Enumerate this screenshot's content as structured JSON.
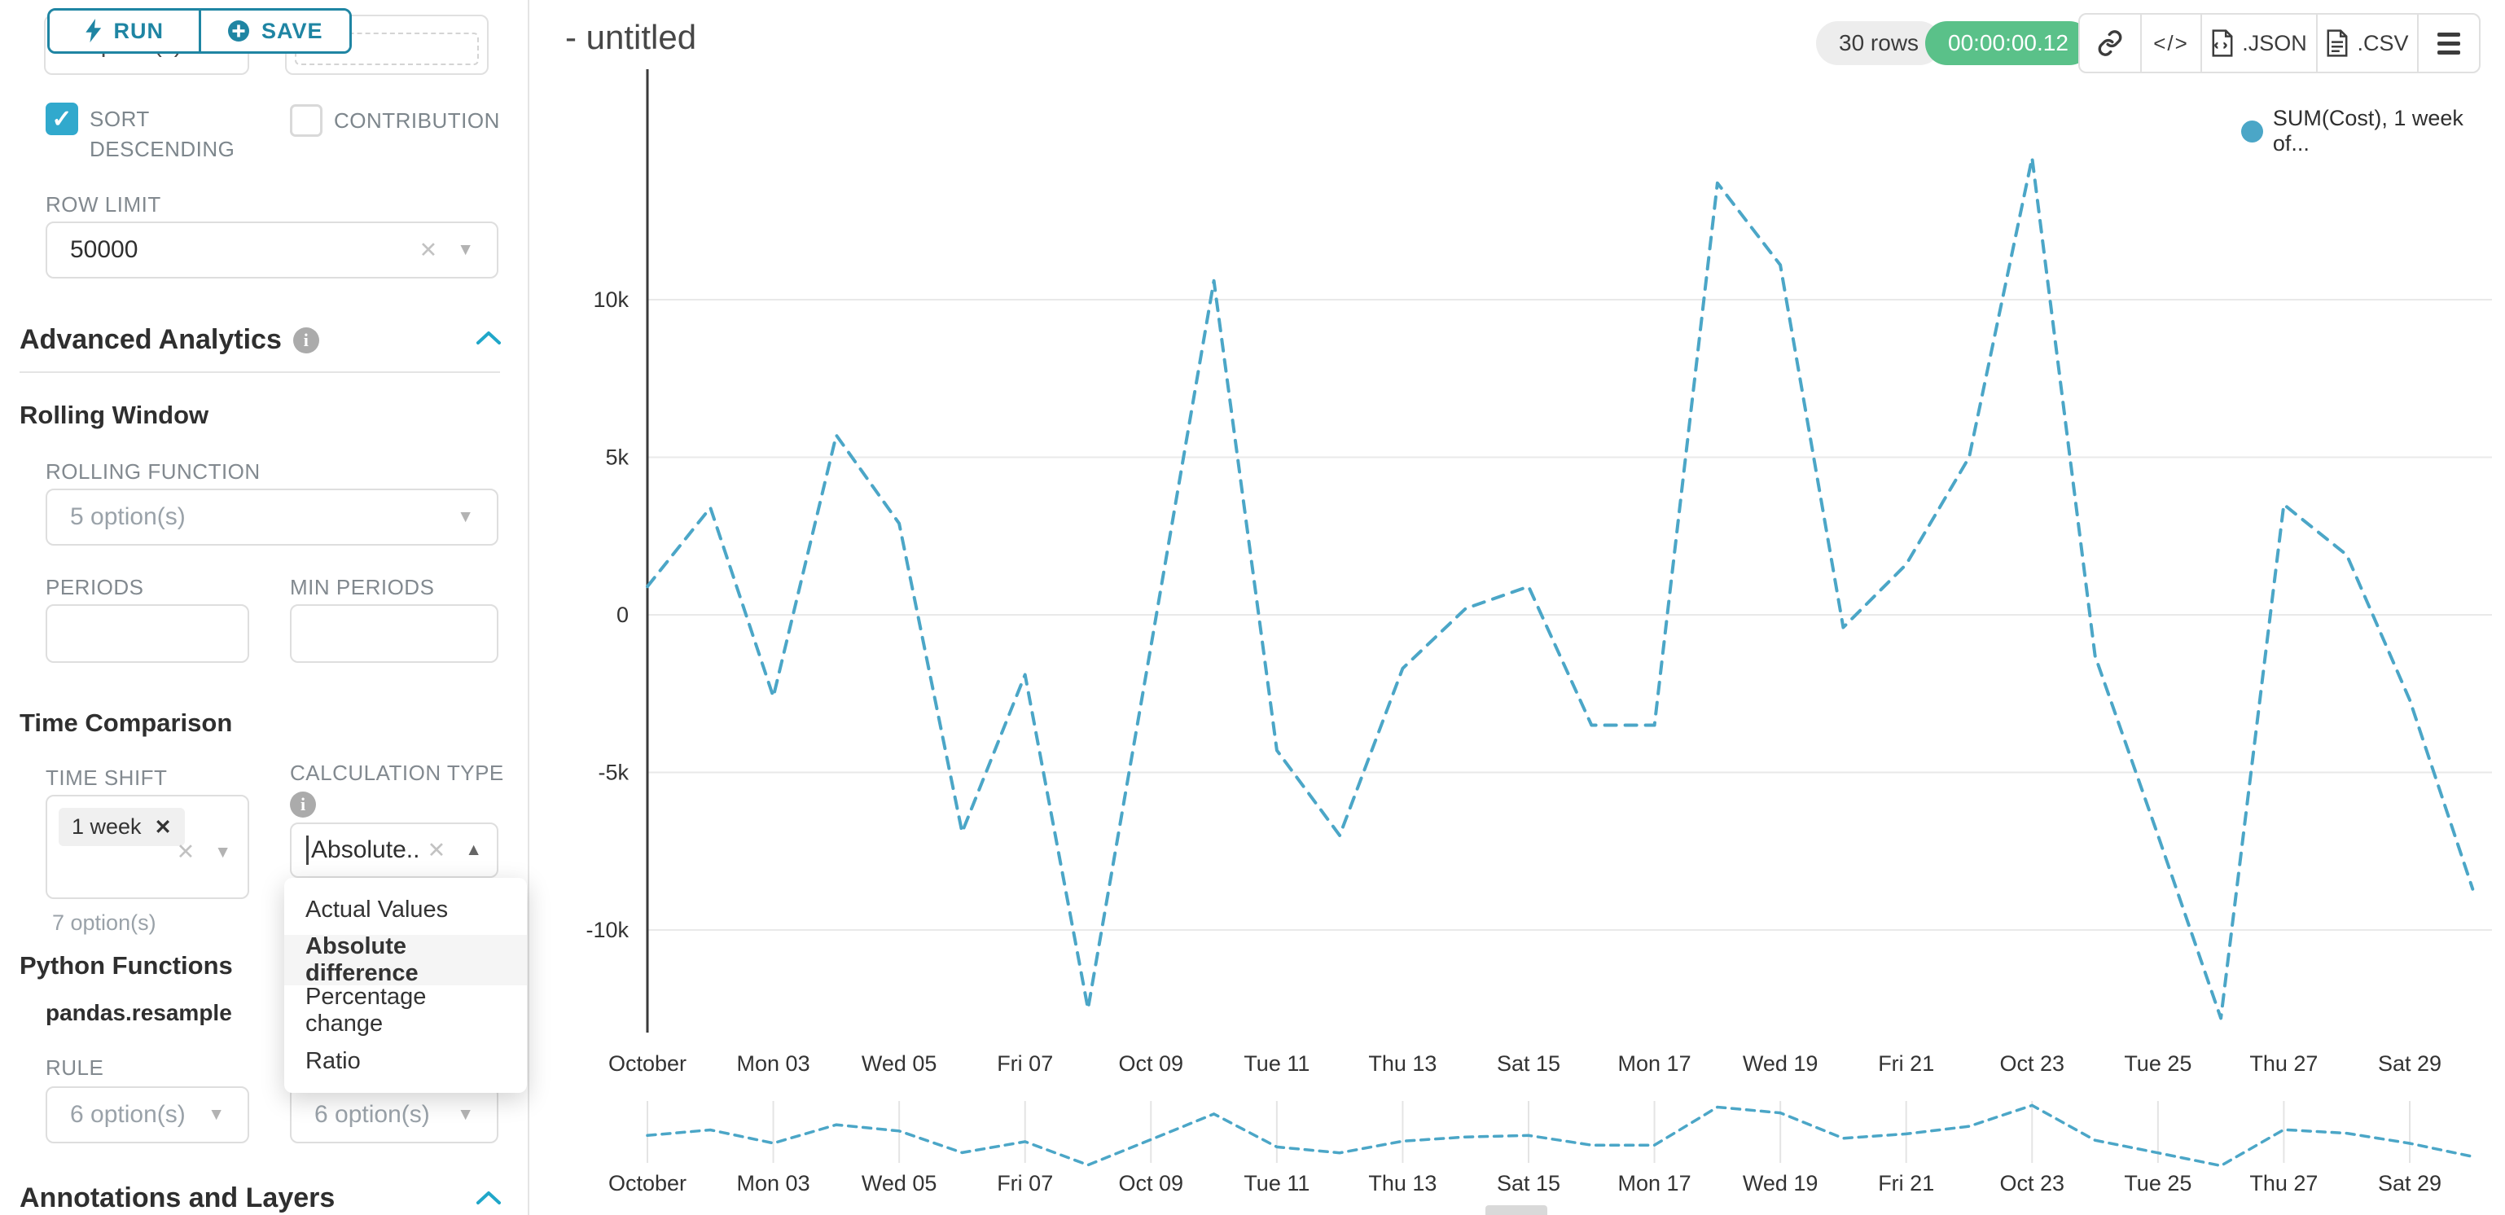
{
  "toolbar": {
    "run_label": "RUN",
    "save_label": "SAVE"
  },
  "header": {
    "title": "- untitled",
    "rows_badge": "30 rows",
    "timer": "00:00:00.12",
    "code_label": "</>",
    "json_label": ".JSON",
    "csv_label": ".CSV"
  },
  "sidebar": {
    "partial_select_value": "7 option(s)",
    "sort_descending_label": "SORT DESCENDING",
    "contribution_label": "CONTRIBUTION",
    "row_limit_label": "ROW LIMIT",
    "row_limit_value": "50000",
    "advanced_analytics_title": "Advanced Analytics",
    "rolling_window": {
      "title": "Rolling Window",
      "rolling_function_label": "ROLLING FUNCTION",
      "rolling_function_value": "5 option(s)",
      "periods_label": "PERIODS",
      "min_periods_label": "MIN PERIODS"
    },
    "time_comparison": {
      "title": "Time Comparison",
      "time_shift_label": "TIME SHIFT",
      "time_shift_tag": "1 week",
      "time_shift_helper": "7 option(s)",
      "calculation_type_label": "CALCULATION TYPE",
      "calculation_type_value": "Absolute...",
      "dropdown_options": [
        "Actual Values",
        "Absolute difference",
        "Percentage change",
        "Ratio"
      ],
      "dropdown_selected": "Absolute difference"
    },
    "python_functions": {
      "title": "Python Functions",
      "subtitle": "pandas.resample",
      "rule_label": "RULE",
      "rule_value_left": "6 option(s)",
      "rule_value_right": "6 option(s)"
    },
    "annotations_title": "Annotations and Layers"
  },
  "chart_data": {
    "type": "line",
    "line_style": "dashed",
    "line_color": "#4ba6c7",
    "legend": [
      {
        "name": "SUM(Cost), 1 week of...",
        "color": "#4ba6c7"
      }
    ],
    "x_dates": [
      "Oct 01",
      "Oct 02",
      "Oct 03",
      "Oct 04",
      "Oct 05",
      "Oct 06",
      "Oct 07",
      "Oct 08",
      "Oct 09",
      "Oct 10",
      "Oct 11",
      "Oct 12",
      "Oct 13",
      "Oct 14",
      "Oct 15",
      "Oct 16",
      "Oct 17",
      "Oct 18",
      "Oct 19",
      "Oct 20",
      "Oct 21",
      "Oct 22",
      "Oct 23",
      "Oct 24",
      "Oct 25",
      "Oct 26",
      "Oct 27",
      "Oct 28",
      "Oct 29",
      "Oct 30"
    ],
    "x_tick_labels": [
      "October",
      "Mon 03",
      "Wed 05",
      "Fri 07",
      "Oct 09",
      "Tue 11",
      "Thu 13",
      "Sat 15",
      "Mon 17",
      "Wed 19",
      "Fri 21",
      "Oct 23",
      "Tue 25",
      "Thu 27",
      "Sat 29"
    ],
    "series": [
      {
        "name": "SUM(Cost), 1 week of...",
        "values": [
          900,
          3400,
          -2600,
          5700,
          2900,
          -6900,
          -1900,
          -12500,
          -1000,
          10600,
          -4300,
          -7000,
          -1700,
          200,
          900,
          -3500,
          -3500,
          13700,
          11100,
          -400,
          1600,
          5000,
          14500,
          -1300,
          -7000,
          -12800,
          3500,
          1900,
          -2700,
          -8700
        ]
      }
    ],
    "y_ticks": [
      {
        "label": "10k",
        "value": 10000
      },
      {
        "label": "5k",
        "value": 5000
      },
      {
        "label": "0",
        "value": 0
      },
      {
        "label": "-5k",
        "value": -5000
      },
      {
        "label": "-10k",
        "value": -10000
      }
    ],
    "ylim": [
      -13500,
      15500
    ],
    "mini_ylim": [
      -13000,
      15000
    ],
    "grid": true,
    "legend_position": "top-right",
    "has_mini_preview": true
  }
}
